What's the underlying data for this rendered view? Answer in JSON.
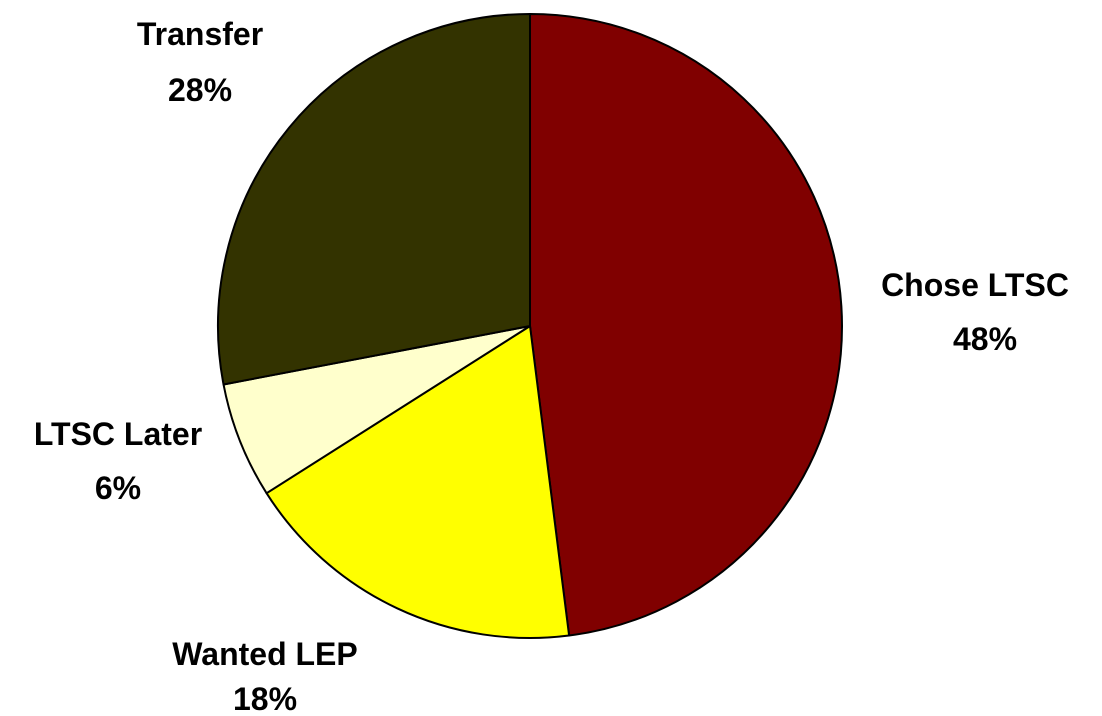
{
  "chart_data": {
    "type": "pie",
    "title": "",
    "start": "12 o'clock",
    "direction": "clockwise",
    "legend": "none",
    "slices": [
      {
        "label": "Chose LTSC",
        "value": 48,
        "value_label": "48%",
        "color": "#800000"
      },
      {
        "label": "Wanted LEP",
        "value": 18,
        "value_label": "18%",
        "color": "#FFFF00"
      },
      {
        "label": "LTSC Later",
        "value": 6,
        "value_label": "6%",
        "color": "#FFFFCC"
      },
      {
        "label": "Transfer",
        "value": 28,
        "value_label": "28%",
        "color": "#333300"
      }
    ]
  }
}
